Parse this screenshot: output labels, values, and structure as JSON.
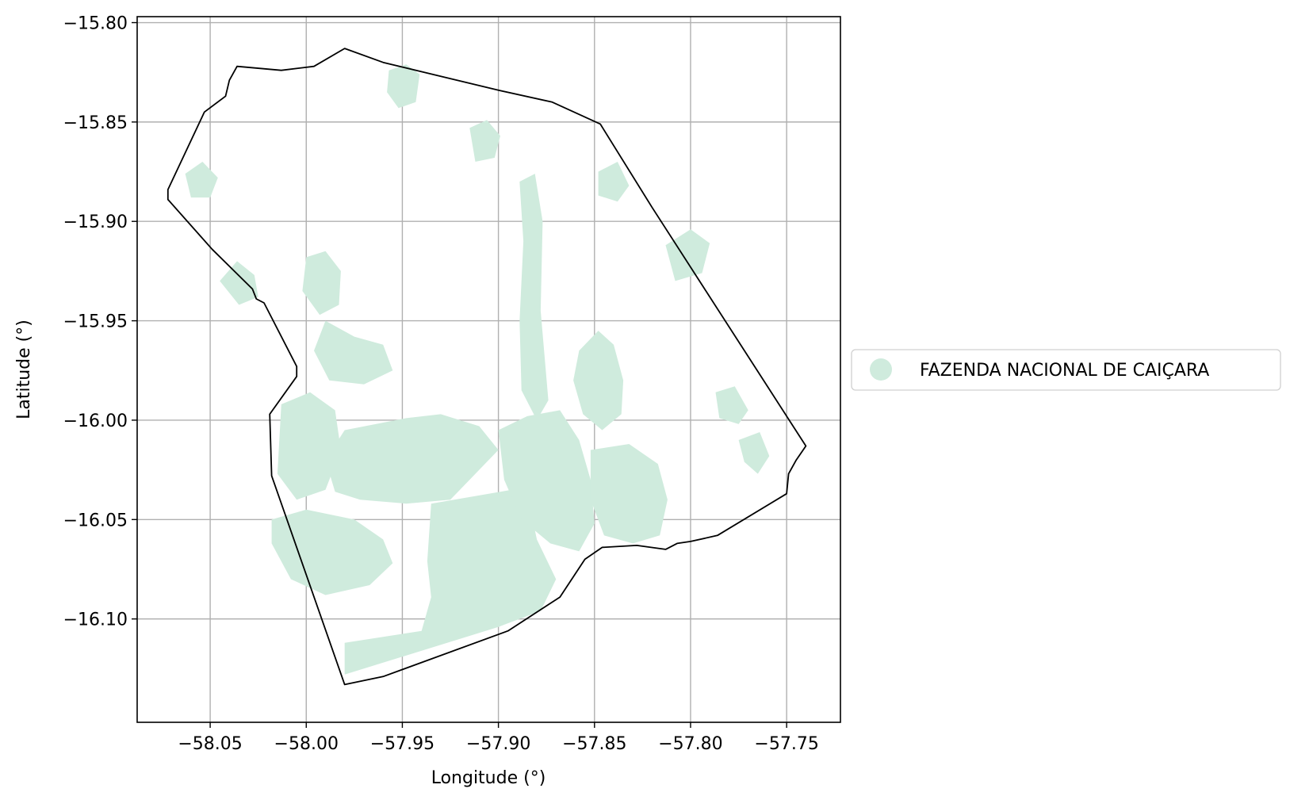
{
  "chart_data": {
    "type": "map",
    "title": "",
    "xlabel": "Longitude (°)",
    "ylabel": "Latitude (°)",
    "xlim": [
      -58.088,
      -57.722
    ],
    "ylim": [
      -16.152,
      -15.797
    ],
    "grid": true,
    "x_ticks": [
      {
        "value": -58.05,
        "label": "−58.05"
      },
      {
        "value": -58.0,
        "label": "−58.00"
      },
      {
        "value": -57.95,
        "label": "−57.95"
      },
      {
        "value": -57.9,
        "label": "−57.90"
      },
      {
        "value": -57.85,
        "label": "−57.85"
      },
      {
        "value": -57.8,
        "label": "−57.80"
      },
      {
        "value": -57.75,
        "label": "−57.75"
      }
    ],
    "y_ticks": [
      {
        "value": -15.8,
        "label": "−15.80"
      },
      {
        "value": -15.85,
        "label": "−15.85"
      },
      {
        "value": -15.9,
        "label": "−15.90"
      },
      {
        "value": -15.95,
        "label": "−15.95"
      },
      {
        "value": -16.0,
        "label": "−16.00"
      },
      {
        "value": -16.05,
        "label": "−16.05"
      },
      {
        "value": -16.1,
        "label": "−16.10"
      }
    ],
    "legend": {
      "placement": "right",
      "entries": [
        {
          "label": "FAZENDA NACIONAL DE CAIÇARA",
          "color": "#cfebdd"
        }
      ]
    },
    "colors": {
      "fill": "#cfebdd",
      "boundary": "#000000",
      "grid": "#b0b0b0"
    },
    "boundary": [
      [
        -57.98,
        -15.813
      ],
      [
        -57.96,
        -15.82
      ],
      [
        -57.93,
        -15.827
      ],
      [
        -57.9,
        -15.834
      ],
      [
        -57.872,
        -15.84
      ],
      [
        -57.847,
        -15.851
      ],
      [
        -57.82,
        -15.893
      ],
      [
        -57.79,
        -15.938
      ],
      [
        -57.76,
        -15.983
      ],
      [
        -57.74,
        -16.013
      ],
      [
        -57.745,
        -16.02
      ],
      [
        -57.749,
        -16.027
      ],
      [
        -57.75,
        -16.037
      ],
      [
        -57.786,
        -16.058
      ],
      [
        -57.8,
        -16.061
      ],
      [
        -57.807,
        -16.062
      ],
      [
        -57.813,
        -16.065
      ],
      [
        -57.828,
        -16.063
      ],
      [
        -57.846,
        -16.064
      ],
      [
        -57.855,
        -16.07
      ],
      [
        -57.868,
        -16.089
      ],
      [
        -57.895,
        -16.106
      ],
      [
        -57.96,
        -16.129
      ],
      [
        -57.98,
        -16.133
      ],
      [
        -58.018,
        -16.028
      ],
      [
        -58.019,
        -15.997
      ],
      [
        -58.005,
        -15.978
      ],
      [
        -58.005,
        -15.973
      ],
      [
        -58.022,
        -15.941
      ],
      [
        -58.026,
        -15.939
      ],
      [
        -58.028,
        -15.934
      ],
      [
        -58.049,
        -15.914
      ],
      [
        -58.072,
        -15.889
      ],
      [
        -58.072,
        -15.884
      ],
      [
        -58.053,
        -15.845
      ],
      [
        -58.042,
        -15.837
      ],
      [
        -58.04,
        -15.829
      ],
      [
        -58.036,
        -15.822
      ],
      [
        -58.013,
        -15.824
      ],
      [
        -57.996,
        -15.822
      ]
    ],
    "areas": [
      [
        [
          -57.935,
          -16.042
        ],
        [
          -57.893,
          -16.035
        ],
        [
          -57.885,
          -16.037
        ],
        [
          -57.88,
          -16.06
        ],
        [
          -57.87,
          -16.08
        ],
        [
          -57.878,
          -16.096
        ],
        [
          -57.9,
          -16.104
        ],
        [
          -57.95,
          -16.119
        ],
        [
          -57.98,
          -16.128
        ],
        [
          -57.98,
          -16.112
        ],
        [
          -57.94,
          -16.106
        ],
        [
          -57.935,
          -16.089
        ],
        [
          -57.937,
          -16.071
        ]
      ],
      [
        [
          -57.98,
          -16.005
        ],
        [
          -57.948,
          -15.999
        ],
        [
          -57.93,
          -15.997
        ],
        [
          -57.91,
          -16.003
        ],
        [
          -57.9,
          -16.015
        ],
        [
          -57.915,
          -16.03
        ],
        [
          -57.925,
          -16.04
        ],
        [
          -57.948,
          -16.042
        ],
        [
          -57.972,
          -16.04
        ],
        [
          -57.985,
          -16.036
        ],
        [
          -57.99,
          -16.02
        ]
      ],
      [
        [
          -57.9,
          -16.005
        ],
        [
          -57.885,
          -15.998
        ],
        [
          -57.868,
          -15.995
        ],
        [
          -57.858,
          -16.01
        ],
        [
          -57.852,
          -16.03
        ],
        [
          -57.85,
          -16.052
        ],
        [
          -57.858,
          -16.066
        ],
        [
          -57.873,
          -16.062
        ],
        [
          -57.888,
          -16.05
        ],
        [
          -57.897,
          -16.03
        ]
      ],
      [
        [
          -57.852,
          -16.015
        ],
        [
          -57.832,
          -16.012
        ],
        [
          -57.817,
          -16.022
        ],
        [
          -57.812,
          -16.04
        ],
        [
          -57.816,
          -16.058
        ],
        [
          -57.83,
          -16.062
        ],
        [
          -57.845,
          -16.058
        ],
        [
          -57.852,
          -16.04
        ]
      ],
      [
        [
          -57.858,
          -15.965
        ],
        [
          -57.848,
          -15.955
        ],
        [
          -57.84,
          -15.962
        ],
        [
          -57.835,
          -15.98
        ],
        [
          -57.836,
          -15.997
        ],
        [
          -57.846,
          -16.005
        ],
        [
          -57.856,
          -15.997
        ],
        [
          -57.861,
          -15.98
        ]
      ],
      [
        [
          -58.013,
          -15.992
        ],
        [
          -57.998,
          -15.986
        ],
        [
          -57.985,
          -15.995
        ],
        [
          -57.982,
          -16.015
        ],
        [
          -57.99,
          -16.035
        ],
        [
          -58.005,
          -16.04
        ],
        [
          -58.015,
          -16.027
        ]
      ],
      [
        [
          -58.018,
          -16.05
        ],
        [
          -58.0,
          -16.045
        ],
        [
          -57.975,
          -16.05
        ],
        [
          -57.96,
          -16.06
        ],
        [
          -57.955,
          -16.072
        ],
        [
          -57.967,
          -16.083
        ],
        [
          -57.99,
          -16.088
        ],
        [
          -58.008,
          -16.08
        ],
        [
          -58.018,
          -16.062
        ]
      ],
      [
        [
          -57.99,
          -15.95
        ],
        [
          -57.975,
          -15.958
        ],
        [
          -57.96,
          -15.962
        ],
        [
          -57.955,
          -15.975
        ],
        [
          -57.97,
          -15.982
        ],
        [
          -57.988,
          -15.98
        ],
        [
          -57.996,
          -15.965
        ]
      ],
      [
        [
          -58.0,
          -15.918
        ],
        [
          -57.99,
          -15.915
        ],
        [
          -57.982,
          -15.925
        ],
        [
          -57.983,
          -15.942
        ],
        [
          -57.993,
          -15.947
        ],
        [
          -58.002,
          -15.935
        ]
      ],
      [
        [
          -57.957,
          -15.824
        ],
        [
          -57.948,
          -15.821
        ],
        [
          -57.941,
          -15.826
        ],
        [
          -57.943,
          -15.84
        ],
        [
          -57.952,
          -15.843
        ],
        [
          -57.958,
          -15.835
        ]
      ],
      [
        [
          -57.813,
          -15.912
        ],
        [
          -57.8,
          -15.904
        ],
        [
          -57.79,
          -15.911
        ],
        [
          -57.794,
          -15.926
        ],
        [
          -57.808,
          -15.93
        ]
      ],
      [
        [
          -57.787,
          -15.986
        ],
        [
          -57.777,
          -15.983
        ],
        [
          -57.77,
          -15.995
        ],
        [
          -57.775,
          -16.002
        ],
        [
          -57.785,
          -15.999
        ]
      ],
      [
        [
          -57.775,
          -16.01
        ],
        [
          -57.764,
          -16.006
        ],
        [
          -57.759,
          -16.018
        ],
        [
          -57.765,
          -16.027
        ],
        [
          -57.772,
          -16.021
        ]
      ],
      [
        [
          -57.889,
          -15.88
        ],
        [
          -57.881,
          -15.876
        ],
        [
          -57.877,
          -15.9
        ],
        [
          -57.878,
          -15.945
        ],
        [
          -57.874,
          -15.99
        ],
        [
          -57.88,
          -16.0
        ],
        [
          -57.888,
          -15.985
        ],
        [
          -57.889,
          -15.95
        ],
        [
          -57.887,
          -15.91
        ]
      ],
      [
        [
          -58.045,
          -15.93
        ],
        [
          -58.036,
          -15.92
        ],
        [
          -58.027,
          -15.927
        ],
        [
          -58.025,
          -15.938
        ],
        [
          -58.035,
          -15.942
        ]
      ],
      [
        [
          -57.915,
          -15.853
        ],
        [
          -57.906,
          -15.849
        ],
        [
          -57.899,
          -15.857
        ],
        [
          -57.902,
          -15.868
        ],
        [
          -57.912,
          -15.87
        ]
      ],
      [
        [
          -58.063,
          -15.876
        ],
        [
          -58.054,
          -15.87
        ],
        [
          -58.046,
          -15.878
        ],
        [
          -58.05,
          -15.888
        ],
        [
          -58.06,
          -15.888
        ]
      ],
      [
        [
          -57.848,
          -15.875
        ],
        [
          -57.838,
          -15.87
        ],
        [
          -57.832,
          -15.882
        ],
        [
          -57.838,
          -15.89
        ],
        [
          -57.848,
          -15.887
        ]
      ]
    ]
  }
}
